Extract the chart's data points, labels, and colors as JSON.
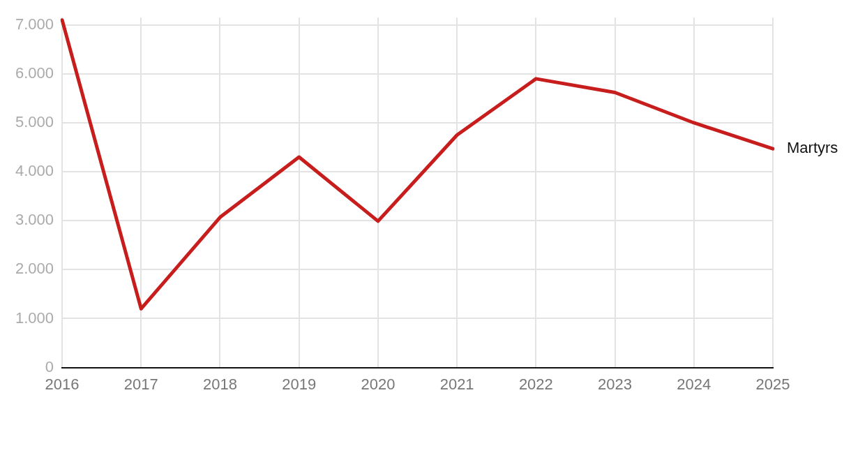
{
  "chart_data": {
    "type": "line",
    "categories": [
      "2016",
      "2017",
      "2018",
      "2019",
      "2020",
      "2021",
      "2022",
      "2023",
      "2024",
      "2025"
    ],
    "series": [
      {
        "name": "Martyrs",
        "color": "#c71e1d",
        "values": [
          7100,
          1200,
          3070,
          4300,
          2990,
          4750,
          5900,
          5620,
          5000,
          4470
        ]
      }
    ],
    "ylim": [
      0,
      7150
    ],
    "yticks": [
      {
        "value": 0,
        "label": "0"
      },
      {
        "value": 1000,
        "label": "1.000"
      },
      {
        "value": 2000,
        "label": "2.000"
      },
      {
        "value": 3000,
        "label": "3.000"
      },
      {
        "value": 4000,
        "label": "4.000"
      },
      {
        "value": 5000,
        "label": "5.000"
      },
      {
        "value": 6000,
        "label": "6.000"
      },
      {
        "value": 7000,
        "label": "7.000"
      }
    ],
    "grid": true,
    "legend": false,
    "marker": "none",
    "line_style": "solid"
  }
}
